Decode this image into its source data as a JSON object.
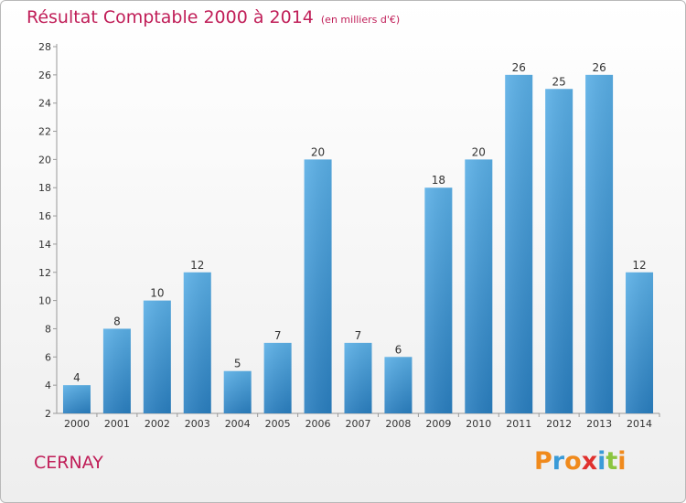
{
  "chart_data": {
    "type": "bar",
    "title": "Résultat Comptable 2000 à 2014",
    "subtitle": "(en milliers d'€)",
    "categories": [
      "2000",
      "2001",
      "2002",
      "2003",
      "2004",
      "2005",
      "2006",
      "2007",
      "2008",
      "2009",
      "2010",
      "2011",
      "2012",
      "2013",
      "2014"
    ],
    "values": [
      4,
      8,
      10,
      12,
      5,
      7,
      20,
      7,
      6,
      18,
      20,
      26,
      25,
      26,
      12
    ],
    "ylim": [
      2,
      28
    ],
    "yticks": [
      2,
      4,
      6,
      8,
      10,
      12,
      14,
      16,
      18,
      20,
      22,
      24,
      26,
      28
    ],
    "xlabel": "",
    "ylabel": "",
    "grid": false
  },
  "commune": "CERNAY",
  "logo": {
    "letters": [
      "P",
      "r",
      "o",
      "x",
      "i",
      "t",
      "i"
    ],
    "colors": [
      "#f08a1c",
      "#3a9bd8",
      "#f08a1c",
      "#e0312e",
      "#3a9bd8",
      "#8bc53f",
      "#f08a1c"
    ]
  },
  "colors": {
    "title": "#c01e58",
    "bar_top": "#5aafe6",
    "bar_bottom": "#2a7fc0"
  }
}
